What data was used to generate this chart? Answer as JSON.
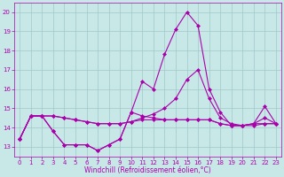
{
  "xlabel": "Windchill (Refroidissement éolien,°C)",
  "x": [
    0,
    1,
    2,
    3,
    4,
    5,
    6,
    7,
    8,
    9,
    10,
    11,
    12,
    13,
    14,
    15,
    16,
    17,
    18,
    19,
    20,
    21,
    22,
    23
  ],
  "line1": [
    13.4,
    14.6,
    14.6,
    13.8,
    13.1,
    13.1,
    13.1,
    12.8,
    13.1,
    13.4,
    14.8,
    16.4,
    16.0,
    17.8,
    19.1,
    20.0,
    19.3,
    16.0,
    14.8,
    14.1,
    14.1,
    14.2,
    15.1,
    14.2
  ],
  "line2": [
    13.4,
    14.6,
    14.6,
    14.6,
    14.5,
    14.4,
    14.3,
    14.2,
    14.2,
    14.2,
    14.3,
    14.4,
    14.4,
    14.4,
    14.4,
    14.4,
    14.4,
    14.4,
    14.2,
    14.1,
    14.1,
    14.1,
    14.2,
    14.2
  ],
  "line3": [
    13.4,
    14.6,
    14.6,
    13.8,
    13.1,
    13.1,
    13.1,
    12.8,
    13.1,
    13.4,
    14.8,
    14.6,
    14.5,
    14.4,
    14.4,
    14.4,
    14.4,
    14.4,
    14.2,
    14.1,
    14.1,
    14.2,
    14.2,
    14.2
  ],
  "line4": [
    13.4,
    14.6,
    14.6,
    14.6,
    14.5,
    14.4,
    14.3,
    14.2,
    14.2,
    14.2,
    14.3,
    14.5,
    14.7,
    15.0,
    15.5,
    16.5,
    17.0,
    15.5,
    14.5,
    14.2,
    14.1,
    14.2,
    14.5,
    14.2
  ],
  "line_color": "#aa00aa",
  "bg_color": "#c8e8e8",
  "grid_color": "#a0c8c8",
  "ylim": [
    12.5,
    20.5
  ],
  "yticks": [
    13,
    14,
    15,
    16,
    17,
    18,
    19,
    20
  ],
  "xticks": [
    0,
    1,
    2,
    3,
    4,
    5,
    6,
    7,
    8,
    9,
    10,
    11,
    12,
    13,
    14,
    15,
    16,
    17,
    18,
    19,
    20,
    21,
    22,
    23
  ],
  "marker": "D",
  "markersize": 2,
  "linewidth": 0.8,
  "tick_fontsize": 5,
  "xlabel_fontsize": 5.5
}
